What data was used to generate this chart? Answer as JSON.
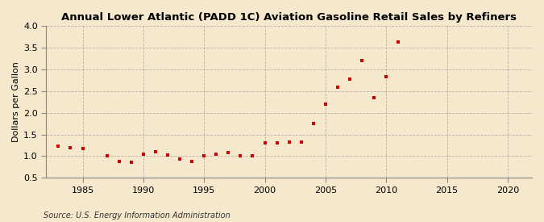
{
  "title": "Annual Lower Atlantic (PADD 1C) Aviation Gasoline Retail Sales by Refiners",
  "ylabel": "Dollars per Gallon",
  "source": "Source: U.S. Energy Information Administration",
  "background_color": "#f5e8cc",
  "xlim": [
    1982,
    2022
  ],
  "ylim": [
    0.5,
    4.0
  ],
  "xticks": [
    1985,
    1990,
    1995,
    2000,
    2005,
    2010,
    2015,
    2020
  ],
  "yticks": [
    0.5,
    1.0,
    1.5,
    2.0,
    2.5,
    3.0,
    3.5,
    4.0
  ],
  "marker_color": "#cc0000",
  "marker": "s",
  "marker_size": 3.5,
  "data": {
    "years": [
      1983,
      1984,
      1985,
      1987,
      1988,
      1989,
      1990,
      1991,
      1992,
      1993,
      1994,
      1995,
      1996,
      1997,
      1998,
      1999,
      2000,
      2001,
      2002,
      2003,
      2004,
      2005,
      2006,
      2007,
      2008,
      2009,
      2010,
      2011
    ],
    "values": [
      1.24,
      1.2,
      1.18,
      1.0,
      0.87,
      0.85,
      1.05,
      1.1,
      1.02,
      0.93,
      0.88,
      1.0,
      1.05,
      1.08,
      1.0,
      1.0,
      1.3,
      1.3,
      1.32,
      1.32,
      1.75,
      2.2,
      2.58,
      2.78,
      3.2,
      2.35,
      2.83,
      3.63
    ]
  }
}
